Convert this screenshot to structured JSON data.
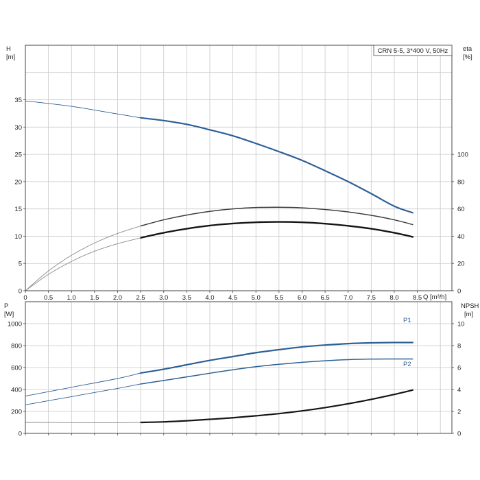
{
  "title": "CRN 5-5, 3*400 V, 50Hz",
  "colors": {
    "blue": "#2c5f95",
    "black": "#151515",
    "dark_gray": "#3d3d3d",
    "thin_gray": "#8a8a8a",
    "grid": "#c8c8c8"
  },
  "chart_data": [
    {
      "type": "line",
      "name": "head-efficiency",
      "xlabel": "Q [m³/h]",
      "ylabel_left": "H",
      "ylabel_left_unit": "[m]",
      "ylabel_right": "eta",
      "ylabel_right_unit": "[%]",
      "xlim": [
        0,
        9.25
      ],
      "ylim_left": [
        0,
        45
      ],
      "ylim_right": [
        0,
        180
      ],
      "x_ticks": [
        "0",
        "0.5",
        "1.0",
        "1.5",
        "2.0",
        "2.5",
        "3.0",
        "3.5",
        "4.0",
        "4.5",
        "5.0",
        "5.5",
        "6.0",
        "6.5",
        "7.0",
        "7.5",
        "8.0",
        "8.5"
      ],
      "y_ticks_left": [
        "0",
        "5",
        "10",
        "15",
        "20",
        "25",
        "30",
        "35"
      ],
      "y_ticks_right": [
        "0",
        "20",
        "40",
        "60",
        "80",
        "100"
      ],
      "grid": true,
      "series": [
        {
          "axis": "left",
          "color": "blue",
          "width": 2.2,
          "x": [
            2.5,
            3.0,
            3.5,
            4.0,
            4.5,
            5.0,
            5.5,
            6.0,
            6.5,
            7.0,
            7.5,
            8.0,
            8.4
          ],
          "values": [
            31.7,
            31.2,
            30.5,
            29.5,
            28.4,
            27.0,
            25.5,
            23.9,
            22.0,
            20.0,
            17.8,
            15.5,
            14.3
          ]
        },
        {
          "axis": "left",
          "color": "blue",
          "width": 0.9,
          "x": [
            0,
            1.0,
            2.0,
            2.5
          ],
          "values": [
            34.8,
            33.8,
            32.4,
            31.7
          ]
        },
        {
          "axis": "right",
          "color": "dark_gray",
          "width": 1.5,
          "x": [
            2.5,
            3.0,
            3.5,
            4.0,
            4.5,
            5.0,
            5.5,
            6.0,
            6.5,
            7.0,
            7.5,
            8.0,
            8.4
          ],
          "values": [
            47.5,
            52.0,
            55.5,
            58.2,
            60.0,
            61.0,
            61.2,
            60.8,
            59.6,
            57.8,
            55.3,
            52.0,
            48.5
          ]
        },
        {
          "axis": "right",
          "color": "thin_gray",
          "width": 0.9,
          "x": [
            0,
            0.5,
            1.0,
            1.5,
            2.0,
            2.5
          ],
          "values": [
            0,
            14.5,
            26.0,
            35.0,
            42.0,
            47.5
          ]
        },
        {
          "axis": "right",
          "color": "black",
          "width": 2.4,
          "x": [
            2.5,
            3.0,
            3.5,
            4.0,
            4.5,
            5.0,
            5.5,
            6.0,
            6.5,
            7.0,
            7.5,
            8.0,
            8.4
          ],
          "values": [
            38.8,
            42.5,
            45.5,
            47.8,
            49.3,
            50.2,
            50.5,
            50.2,
            49.2,
            47.6,
            45.5,
            42.5,
            39.5
          ]
        },
        {
          "axis": "right",
          "color": "thin_gray",
          "width": 0.9,
          "x": [
            0,
            0.5,
            1.0,
            1.5,
            2.0,
            2.5
          ],
          "values": [
            0,
            12.0,
            21.5,
            29.0,
            34.5,
            38.8
          ]
        }
      ]
    },
    {
      "type": "line",
      "name": "power-npsh",
      "xlabel": "",
      "ylabel_left": "P",
      "ylabel_left_unit": "[W]",
      "ylabel_right": "NPSH",
      "ylabel_right_unit": "[m]",
      "xlim": [
        0,
        9.25
      ],
      "ylim_left": [
        0,
        1200
      ],
      "ylim_right": [
        0,
        12
      ],
      "y_ticks_left": [
        "0",
        "200",
        "400",
        "600",
        "800",
        "1000"
      ],
      "y_ticks_right": [
        "0",
        "2",
        "4",
        "6",
        "8",
        "10"
      ],
      "grid": true,
      "series": [
        {
          "axis": "left",
          "name": "P1",
          "color": "blue",
          "width": 2.2,
          "x": [
            2.5,
            3.0,
            3.5,
            4.0,
            4.5,
            5.0,
            5.5,
            6.0,
            6.5,
            7.0,
            7.5,
            8.0,
            8.4
          ],
          "values": [
            550,
            585,
            625,
            665,
            700,
            735,
            763,
            788,
            805,
            818,
            825,
            828,
            828
          ]
        },
        {
          "axis": "left",
          "color": "blue",
          "width": 0.9,
          "x": [
            0,
            1.0,
            2.0,
            2.5
          ],
          "values": [
            340,
            420,
            500,
            550
          ]
        },
        {
          "axis": "left",
          "name": "P2",
          "color": "blue",
          "width": 1.5,
          "x": [
            2.5,
            3.0,
            3.5,
            4.0,
            4.5,
            5.0,
            5.5,
            6.0,
            6.5,
            7.0,
            7.5,
            8.0,
            8.4
          ],
          "values": [
            450,
            482,
            515,
            548,
            580,
            608,
            630,
            648,
            662,
            672,
            677,
            678,
            678
          ]
        },
        {
          "axis": "left",
          "color": "blue",
          "width": 0.9,
          "x": [
            0,
            1.0,
            2.0,
            2.5
          ],
          "values": [
            260,
            335,
            410,
            450
          ]
        },
        {
          "axis": "right",
          "color": "black",
          "width": 2.2,
          "x": [
            2.5,
            3.0,
            3.5,
            4.0,
            4.5,
            5.0,
            5.5,
            6.0,
            6.5,
            7.0,
            7.5,
            8.0,
            8.4
          ],
          "values": [
            1.0,
            1.05,
            1.15,
            1.28,
            1.42,
            1.6,
            1.8,
            2.05,
            2.35,
            2.7,
            3.1,
            3.55,
            3.95
          ]
        },
        {
          "axis": "right",
          "color": "thin_gray",
          "width": 0.9,
          "x": [
            0,
            1.0,
            2.0,
            2.5
          ],
          "values": [
            1.0,
            0.98,
            0.97,
            1.0
          ]
        }
      ]
    }
  ]
}
